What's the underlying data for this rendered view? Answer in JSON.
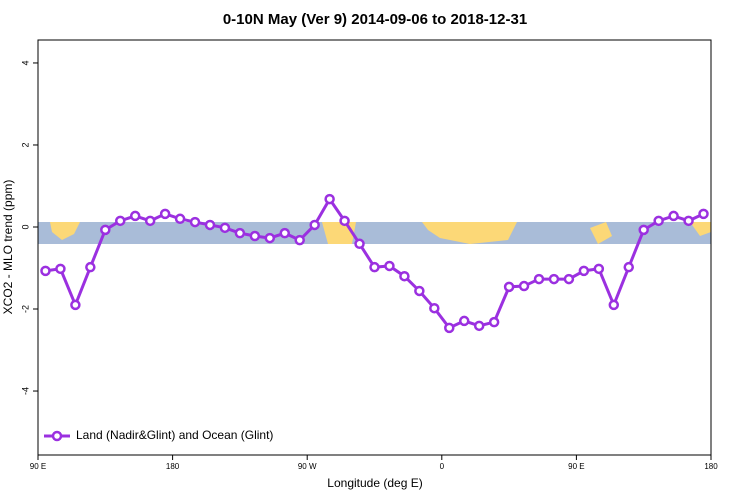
{
  "chart_data": {
    "type": "line",
    "title": "0-10N May (Ver 9)   2014-09-06 to 2018-12-31",
    "x_label": "Longitude (deg E)",
    "y_label": "XCO2 - MLO trend (ppm)",
    "legend": "bottom-left",
    "x": [
      95,
      105,
      115,
      125,
      135,
      145,
      155,
      165,
      175,
      185,
      195,
      205,
      215,
      225,
      235,
      245,
      255,
      265,
      275,
      285,
      295,
      305,
      315,
      325,
      335,
      345,
      355,
      365,
      375,
      385,
      395,
      405,
      415,
      425,
      435,
      445,
      455,
      465,
      475,
      485,
      495,
      505,
      515,
      525,
      535
    ],
    "series": [
      {
        "name": "Land (Nadir&Glint) and Ocean (Glint)",
        "color": "#9b30e0",
        "values": [
          -1.07,
          -1.02,
          -1.9,
          -0.98,
          -0.07,
          0.15,
          0.27,
          0.15,
          0.32,
          0.2,
          0.12,
          0.05,
          -0.02,
          -0.15,
          -0.22,
          -0.27,
          -0.15,
          -0.32,
          0.05,
          0.68,
          0.15,
          -0.41,
          -0.98,
          -0.95,
          -1.2,
          -1.56,
          -1.98,
          -2.46,
          -2.29,
          -2.41,
          -2.32,
          -1.46,
          -1.44,
          -1.27,
          -1.27,
          -1.27,
          -1.07,
          -1.02,
          -1.9,
          -0.98,
          -0.07,
          0.15,
          0.27,
          0.15,
          0.32
        ]
      }
    ],
    "xlim": [
      90,
      540
    ],
    "xticks": [
      {
        "value": 90,
        "label": "90 E"
      },
      180,
      {
        "value": 270,
        "label": "90 W"
      },
      {
        "value": 360,
        "label": "0"
      },
      {
        "value": 450,
        "label": "90 E"
      },
      {
        "value": 540,
        "label": "180"
      }
    ],
    "ylim": [
      -5.56,
      4.56
    ],
    "yticks": [
      -4,
      -2,
      0,
      2,
      4
    ]
  }
}
